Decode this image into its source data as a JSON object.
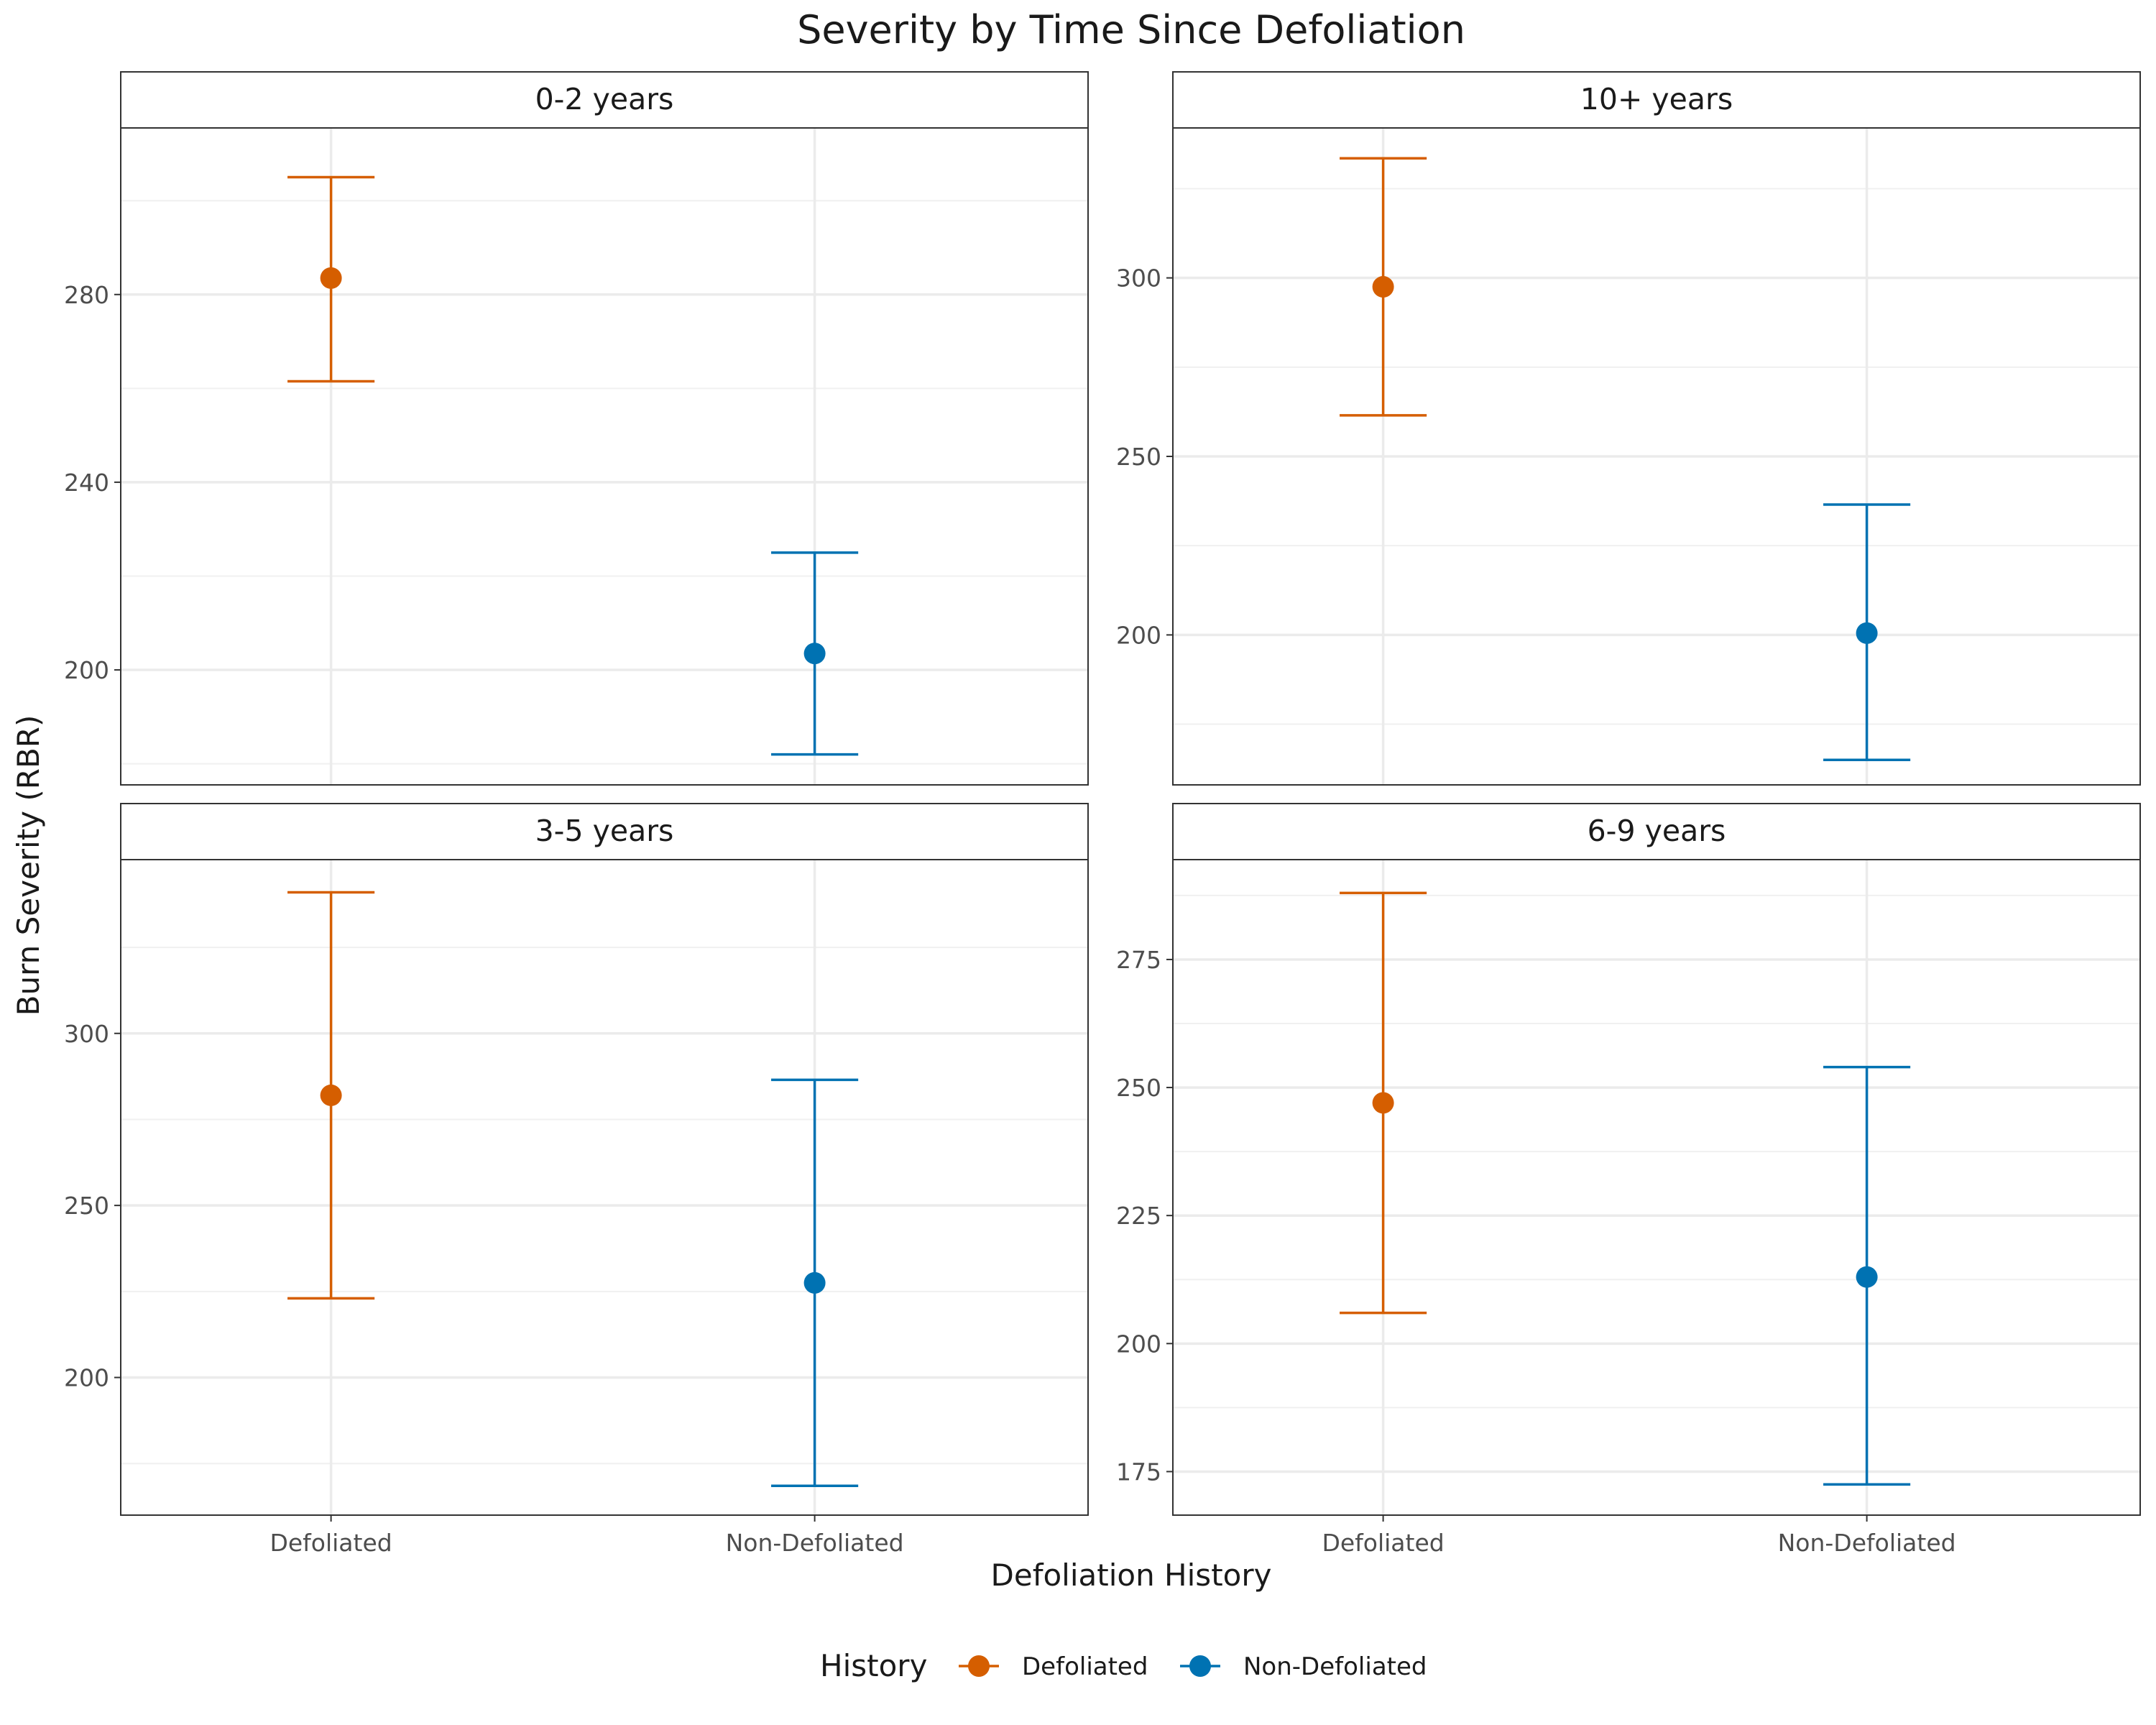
{
  "chart_data": {
    "type": "errorbar",
    "title": "Severity by Time Since Defoliation",
    "xlabel": "Defoliation History",
    "ylabel": "Burn Severity (RBR)",
    "categories": [
      "Defoliated",
      "Non-Defoliated"
    ],
    "colors": {
      "Defoliated": "#D55E00",
      "Non-Defoliated": "#0072B2"
    },
    "grid": true,
    "legend": {
      "title": "History",
      "position": "bottom",
      "entries": [
        "Defoliated",
        "Non-Defoliated"
      ]
    },
    "facets": [
      {
        "label": "0-2 years",
        "ylim": [
          175.5,
          315.5
        ],
        "yticks": [
          200,
          240,
          280
        ],
        "points": [
          {
            "category": "Defoliated",
            "mean": 283.5,
            "lower": 261.5,
            "upper": 305
          },
          {
            "category": "Non-Defoliated",
            "mean": 203.5,
            "lower": 182,
            "upper": 225
          }
        ]
      },
      {
        "label": "10+ years",
        "ylim": [
          158,
          342
        ],
        "yticks": [
          200,
          250,
          300
        ],
        "points": [
          {
            "category": "Defoliated",
            "mean": 297.5,
            "lower": 261.5,
            "upper": 333.5
          },
          {
            "category": "Non-Defoliated",
            "mean": 200.5,
            "lower": 165,
            "upper": 236.5
          }
        ]
      },
      {
        "label": "3-5 years",
        "ylim": [
          160,
          350.5
        ],
        "yticks": [
          200,
          250,
          300
        ],
        "points": [
          {
            "category": "Defoliated",
            "mean": 282,
            "lower": 223,
            "upper": 341
          },
          {
            "category": "Non-Defoliated",
            "mean": 227.5,
            "lower": 168.5,
            "upper": 286.5
          }
        ]
      },
      {
        "label": "6-9 years",
        "ylim": [
          166.5,
          294.5
        ],
        "yticks": [
          175,
          200,
          225,
          250,
          275
        ],
        "points": [
          {
            "category": "Defoliated",
            "mean": 247,
            "lower": 206,
            "upper": 288
          },
          {
            "category": "Non-Defoliated",
            "mean": 213,
            "lower": 172.5,
            "upper": 254
          }
        ]
      }
    ]
  }
}
